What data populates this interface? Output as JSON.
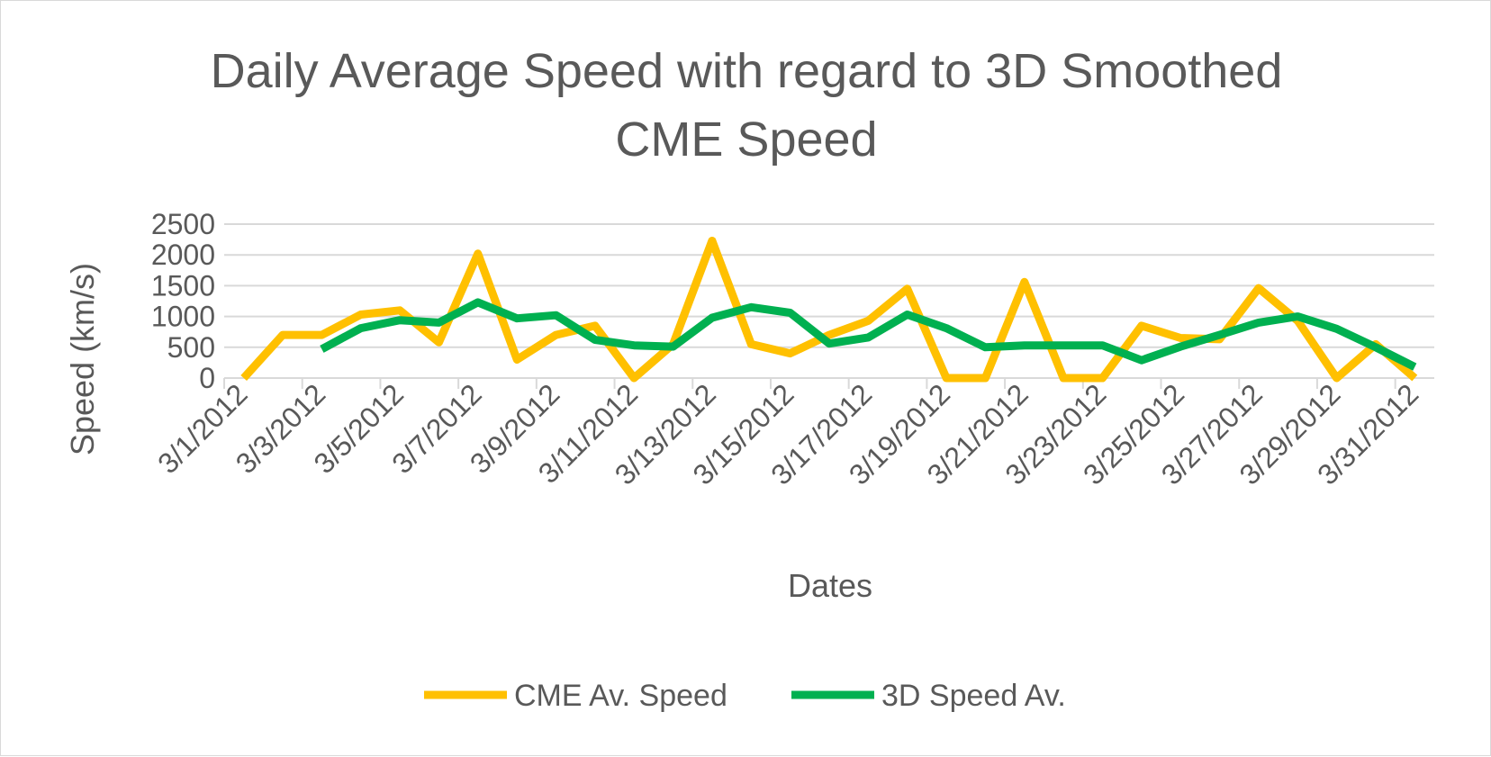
{
  "chart_data": {
    "type": "line",
    "title_lines": [
      "Daily Average Speed with regard to 3D Smoothed",
      "CME Speed"
    ],
    "xlabel": "Dates",
    "ylabel": "Speed (km/s)",
    "ylim": [
      0,
      2500
    ],
    "y_ticks": [
      "0",
      "500",
      "1000",
      "1500",
      "2000",
      "2500"
    ],
    "grid": true,
    "legend_position": "bottom",
    "x": [
      "3/1/2012",
      "3/2/2012",
      "3/3/2012",
      "3/4/2012",
      "3/5/2012",
      "3/6/2012",
      "3/7/2012",
      "3/8/2012",
      "3/9/2012",
      "3/10/2012",
      "3/11/2012",
      "3/12/2012",
      "3/13/2012",
      "3/14/2012",
      "3/15/2012",
      "3/16/2012",
      "3/17/2012",
      "3/18/2012",
      "3/19/2012",
      "3/20/2012",
      "3/21/2012",
      "3/22/2012",
      "3/23/2012",
      "3/24/2012",
      "3/25/2012",
      "3/26/2012",
      "3/27/2012",
      "3/28/2012",
      "3/29/2012",
      "3/30/2012",
      "3/31/2012"
    ],
    "x_tick_labels": [
      "3/1/2012",
      "3/3/2012",
      "3/5/2012",
      "3/7/2012",
      "3/9/2012",
      "3/11/2012",
      "3/13/2012",
      "3/15/2012",
      "3/17/2012",
      "3/19/2012",
      "3/21/2012",
      "3/23/2012",
      "3/25/2012",
      "3/27/2012",
      "3/29/2012",
      "3/31/2012"
    ],
    "series": [
      {
        "name": "CME Av. Speed",
        "color": "#FFC000",
        "values": [
          0,
          700,
          700,
          1030,
          1100,
          580,
          2020,
          300,
          700,
          850,
          0,
          550,
          2230,
          550,
          400,
          700,
          930,
          1450,
          0,
          0,
          1560,
          0,
          0,
          850,
          650,
          630,
          1460,
          930,
          0,
          550,
          0
        ]
      },
      {
        "name": "3D Speed Av.",
        "color": "#00B050",
        "values": [
          null,
          null,
          470,
          810,
          940,
          900,
          1230,
          970,
          1020,
          620,
          530,
          510,
          980,
          1150,
          1060,
          560,
          660,
          1030,
          810,
          500,
          530,
          530,
          530,
          290,
          510,
          700,
          900,
          1000,
          800,
          500,
          180
        ]
      }
    ]
  }
}
